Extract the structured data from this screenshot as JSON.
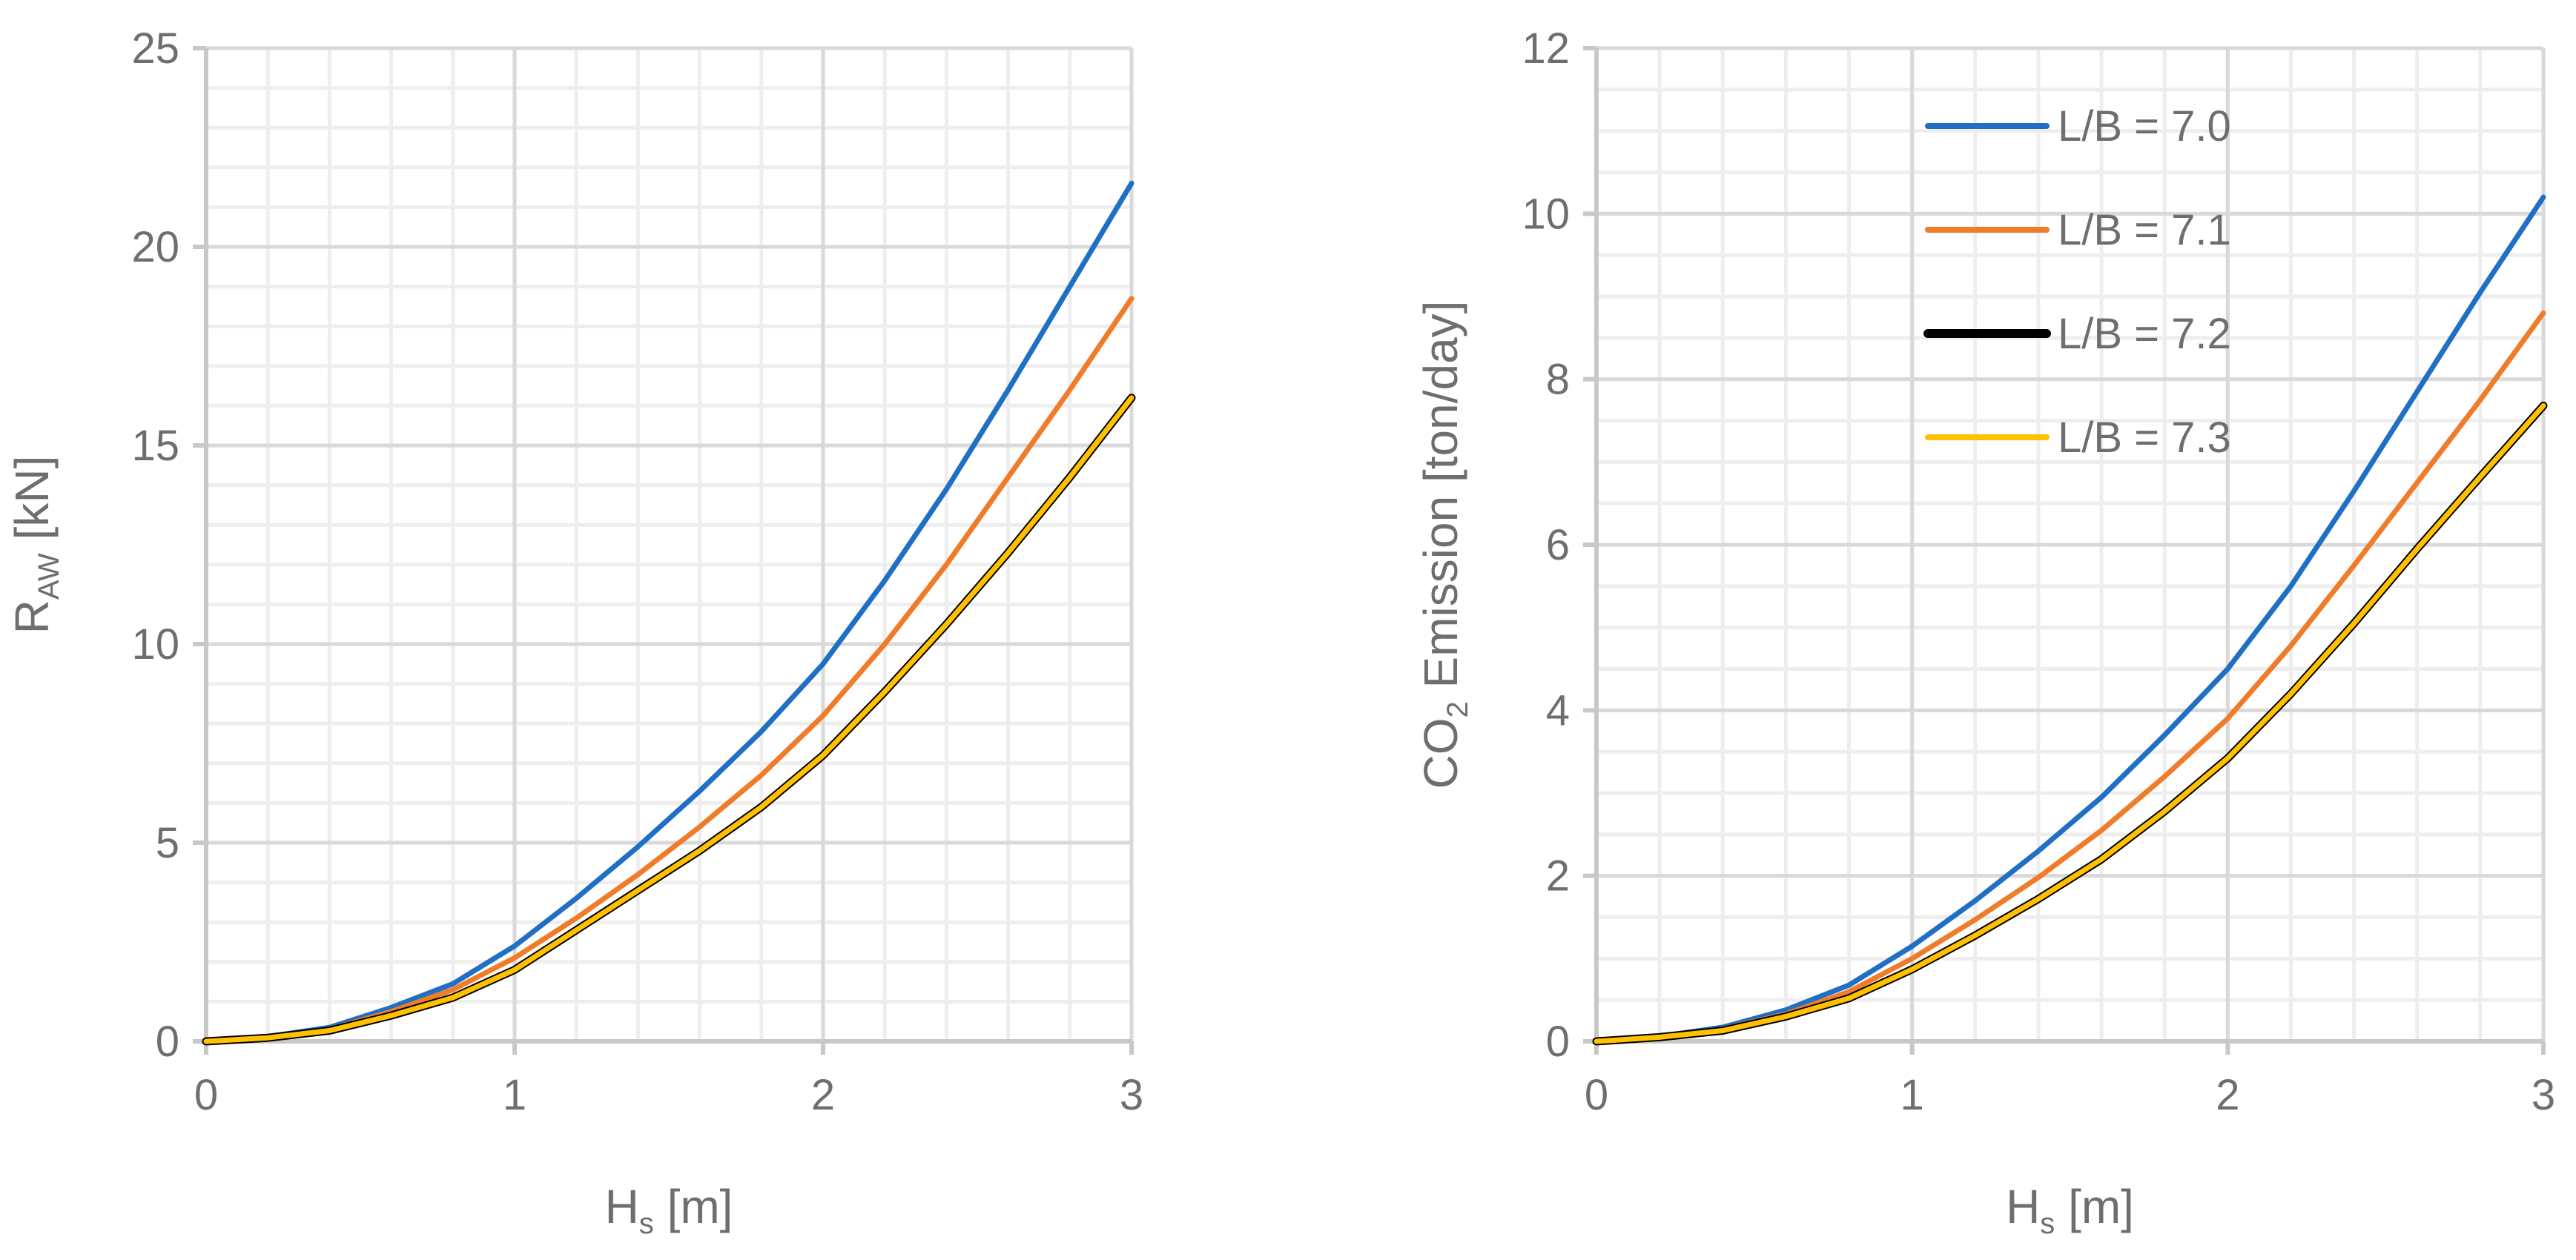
{
  "chart_data": [
    {
      "type": "line",
      "title": "",
      "xlabel": {
        "main": "H",
        "sub": "s",
        "suffix": " [m]"
      },
      "ylabel": {
        "main": "R",
        "sub": "AW",
        "suffix": " [kN]"
      },
      "xlim": [
        0,
        3
      ],
      "ylim": [
        0,
        25
      ],
      "xticks": [
        0,
        1,
        2,
        3
      ],
      "yticks": [
        0,
        5,
        10,
        15,
        20,
        25
      ],
      "xtick_labels": [
        "0",
        "1",
        "2",
        "3"
      ],
      "ytick_labels": [
        "0",
        "5",
        "10",
        "15",
        "20",
        "25"
      ],
      "x_minor_step": 0.2,
      "y_minor_step": 1,
      "grid": true,
      "x": [
        0,
        0.2,
        0.4,
        0.6,
        0.8,
        1.0,
        1.2,
        1.4,
        1.6,
        1.8,
        2.0,
        2.2,
        2.4,
        2.6,
        2.8,
        3.0
      ],
      "series": [
        {
          "name": "L/B = 7.0",
          "color": "#1f6fc5",
          "values": [
            0,
            0.12,
            0.35,
            0.85,
            1.45,
            2.4,
            3.6,
            4.9,
            6.3,
            7.8,
            9.5,
            11.6,
            13.9,
            16.4,
            19.0,
            21.6
          ]
        },
        {
          "name": "L/B = 7.1",
          "color": "#f07c2a",
          "values": [
            0,
            0.1,
            0.3,
            0.75,
            1.3,
            2.1,
            3.1,
            4.2,
            5.4,
            6.7,
            8.2,
            10.0,
            12.0,
            14.2,
            16.4,
            18.7
          ]
        },
        {
          "name": "L/B = 7.2",
          "color": "#000000",
          "values": [
            0,
            0.09,
            0.27,
            0.65,
            1.1,
            1.8,
            2.8,
            3.8,
            4.8,
            5.9,
            7.2,
            8.8,
            10.5,
            12.3,
            14.2,
            16.2
          ]
        },
        {
          "name": "L/B = 7.3",
          "color": "#ffc000",
          "values": [
            0,
            0.09,
            0.27,
            0.65,
            1.1,
            1.8,
            2.8,
            3.8,
            4.8,
            5.9,
            7.2,
            8.8,
            10.5,
            12.3,
            14.2,
            16.2
          ]
        }
      ]
    },
    {
      "type": "line",
      "title": "",
      "xlabel": {
        "main": "H",
        "sub": "s",
        "suffix": " [m]"
      },
      "ylabel": {
        "main": "CO",
        "sub": "2",
        "suffix": " Emission [ton/day]"
      },
      "xlim": [
        0,
        3
      ],
      "ylim": [
        0,
        12
      ],
      "xticks": [
        0,
        1,
        2,
        3
      ],
      "yticks": [
        0,
        2,
        4,
        6,
        8,
        10,
        12
      ],
      "xtick_labels": [
        "0",
        "1",
        "2",
        "3"
      ],
      "ytick_labels": [
        "0",
        "2",
        "4",
        "6",
        "8",
        "10",
        "12"
      ],
      "x_minor_step": 0.2,
      "y_minor_step": 0.5,
      "grid": true,
      "legend_position": "top-right",
      "x": [
        0,
        0.2,
        0.4,
        0.6,
        0.8,
        1.0,
        1.2,
        1.4,
        1.6,
        1.8,
        2.0,
        2.2,
        2.4,
        2.6,
        2.8,
        3.0
      ],
      "series": [
        {
          "name": "L/B = 7.0",
          "color": "#1f6fc5",
          "values": [
            0,
            0.06,
            0.17,
            0.38,
            0.68,
            1.15,
            1.7,
            2.3,
            2.95,
            3.7,
            4.5,
            5.5,
            6.65,
            7.85,
            9.05,
            10.2
          ]
        },
        {
          "name": "L/B = 7.1",
          "color": "#f07c2a",
          "values": [
            0,
            0.05,
            0.15,
            0.33,
            0.6,
            1.0,
            1.47,
            1.98,
            2.55,
            3.2,
            3.9,
            4.78,
            5.75,
            6.75,
            7.75,
            8.8
          ]
        },
        {
          "name": "L/B = 7.2",
          "color": "#000000",
          "values": [
            0,
            0.05,
            0.13,
            0.3,
            0.52,
            0.87,
            1.28,
            1.72,
            2.2,
            2.78,
            3.42,
            4.2,
            5.05,
            5.95,
            6.82,
            7.68
          ]
        },
        {
          "name": "L/B = 7.3",
          "color": "#ffc000",
          "values": [
            0,
            0.05,
            0.13,
            0.3,
            0.52,
            0.87,
            1.28,
            1.72,
            2.2,
            2.78,
            3.42,
            4.2,
            5.05,
            5.95,
            6.82,
            7.68
          ]
        }
      ]
    }
  ]
}
